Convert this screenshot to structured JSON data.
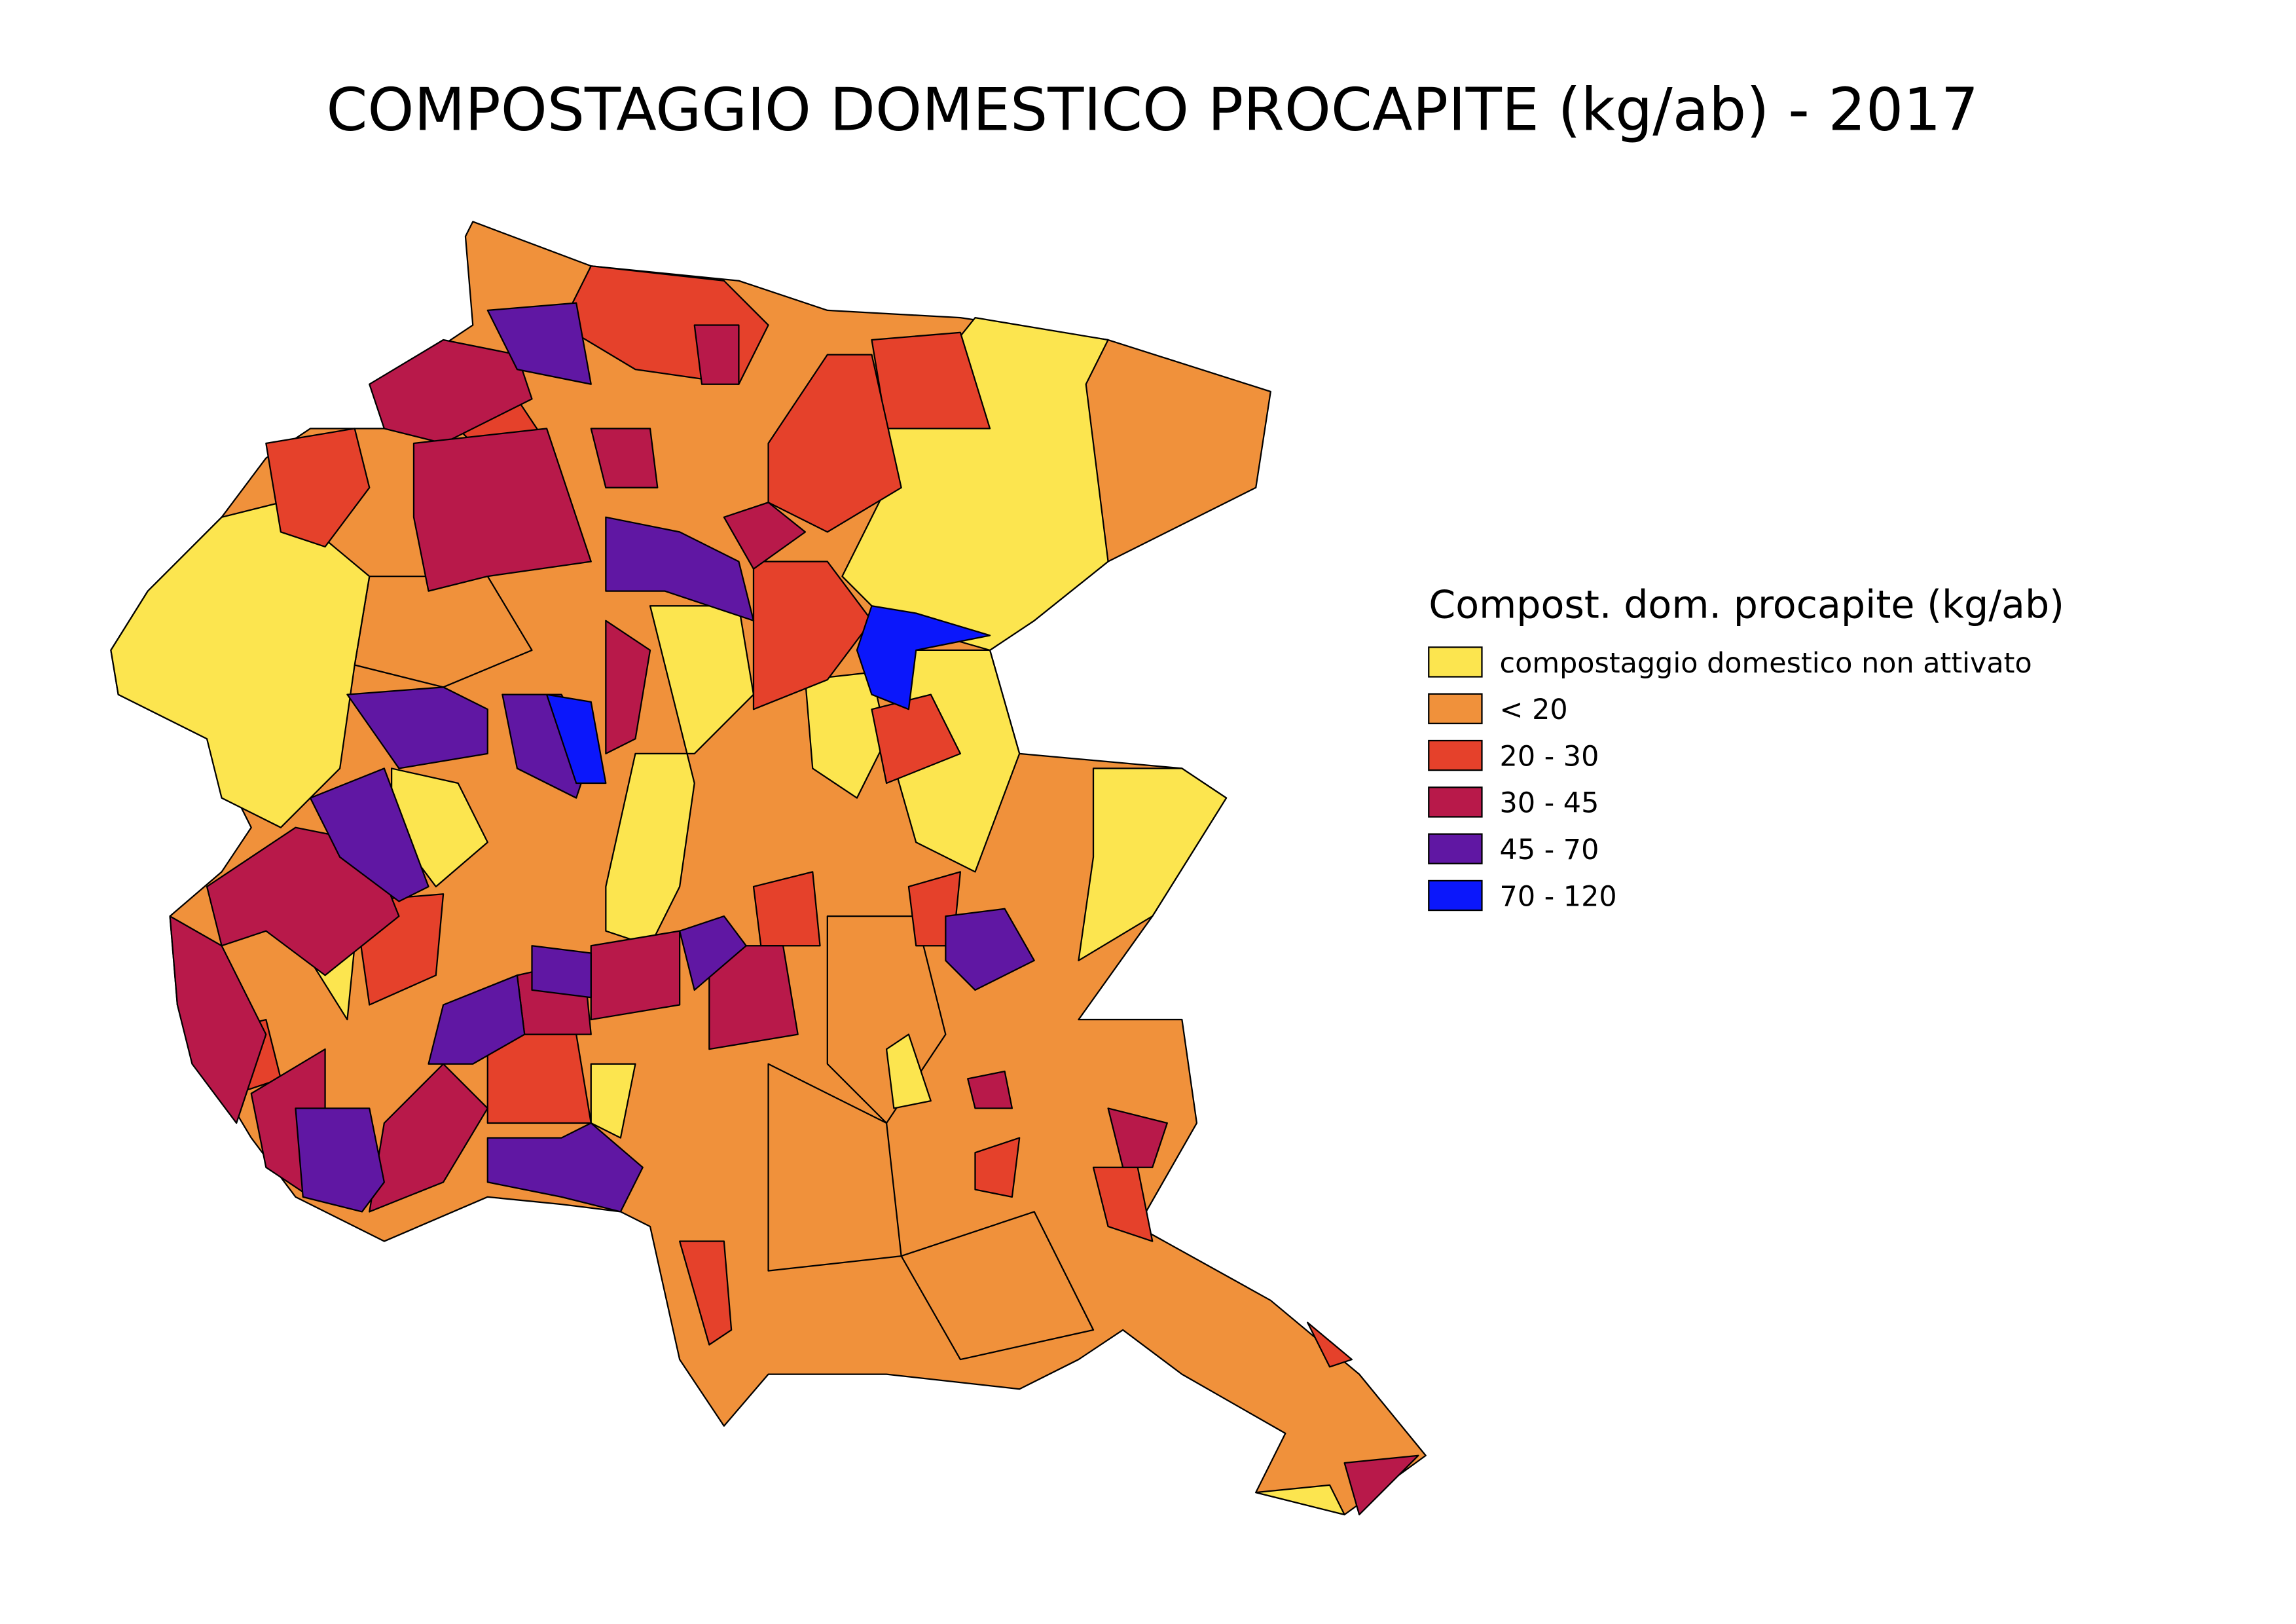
{
  "header": {
    "title": "COMPOSTAGGIO DOMESTICO PROCAPITE (kg/ab) - 2017"
  },
  "legend": {
    "title": "Compost. dom. procapite (kg/ab)",
    "items": [
      {
        "label": "compostaggio domestico non attivato",
        "color": "#fce54f"
      },
      {
        "label": "< 20",
        "color": "#f0913b"
      },
      {
        "label": "20 - 30",
        "color": "#e5412b"
      },
      {
        "label": "30 - 45",
        "color": "#b8194a"
      },
      {
        "label": "45 - 70",
        "color": "#6017a3"
      },
      {
        "label": "70 - 120",
        "color": "#0b17fb"
      }
    ]
  }
}
